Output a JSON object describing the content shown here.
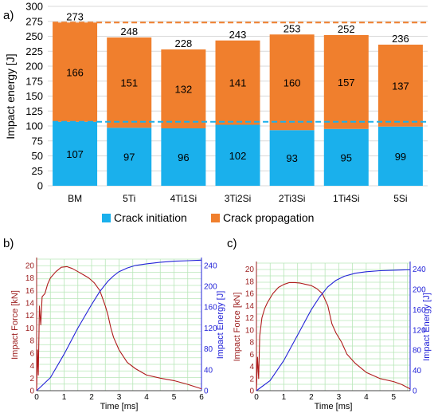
{
  "panels": {
    "a": "a)",
    "b": "b)",
    "c": "c)"
  },
  "chart_data": [
    {
      "type": "bar",
      "stacked": true,
      "categories": [
        "BM",
        "5Ti",
        "4Ti1Si",
        "3Ti2Si",
        "2Ti3Si",
        "1Ti4Si",
        "5Si"
      ],
      "series": [
        {
          "name": "Crack initiation",
          "values": [
            107,
            97,
            96,
            102,
            93,
            95,
            99
          ],
          "color": "#1ab0ec"
        },
        {
          "name": "Crack propagation",
          "values": [
            166,
            151,
            132,
            141,
            160,
            157,
            137
          ],
          "color": "#f07f2d"
        }
      ],
      "totals": [
        273,
        248,
        228,
        243,
        253,
        252,
        236
      ],
      "ylabel": "Impact energy [J]",
      "ylim": [
        0,
        300
      ],
      "yticks": [
        0,
        25,
        50,
        75,
        100,
        125,
        150,
        175,
        200,
        225,
        250,
        275,
        300
      ],
      "reference_lines": [
        {
          "value": 273,
          "color": "#f07f2d",
          "style": "dashed"
        },
        {
          "value": 107,
          "color": "#1ab0ec",
          "style": "dashed"
        }
      ],
      "legend_position": "bottom"
    },
    {
      "type": "line",
      "panel": "b",
      "xlabel": "Time [ms]",
      "ylabel_left": "Impact Force [kN]",
      "ylabel_right": "Impact Energy [J]",
      "xlim": [
        0,
        6
      ],
      "ylim_left": [
        0,
        21
      ],
      "ylim_right": [
        0,
        252
      ],
      "xticks": [
        0,
        1,
        2,
        3,
        4,
        5,
        6
      ],
      "yticks_left": [
        0,
        2,
        4,
        6,
        8,
        10,
        12,
        14,
        16,
        18,
        20
      ],
      "yticks_right": [
        0,
        40,
        80,
        120,
        160,
        200,
        240
      ],
      "grid": true,
      "series": [
        {
          "name": "Impact Force",
          "axis": "left",
          "color": "#b01c1c",
          "x": [
            0,
            0.03,
            0.06,
            0.1,
            0.15,
            0.2,
            0.3,
            0.4,
            0.5,
            0.7,
            0.9,
            1.1,
            1.3,
            1.5,
            1.7,
            1.9,
            2.1,
            2.3,
            2.5,
            2.6,
            2.7,
            2.8,
            3.0,
            3.3,
            3.6,
            4.0,
            4.5,
            5.0,
            5.5,
            6.0
          ],
          "y": [
            0,
            6.5,
            2.5,
            13.5,
            10.5,
            15.0,
            15.5,
            17.0,
            18.0,
            19.0,
            19.7,
            19.8,
            19.5,
            19.0,
            18.5,
            18.0,
            17.2,
            16.0,
            13.5,
            12.0,
            10.0,
            8.5,
            6.5,
            4.5,
            3.5,
            2.5,
            2.0,
            1.6,
            1.0,
            0.3
          ]
        },
        {
          "name": "Impact Energy",
          "axis": "right",
          "color": "#2323d8",
          "x": [
            0,
            0.5,
            1.0,
            1.5,
            2.0,
            2.3,
            2.6,
            2.8,
            3.0,
            3.3,
            3.6,
            4.0,
            4.5,
            5.0,
            5.5,
            6.0
          ],
          "y": [
            0,
            25,
            70,
            120,
            165,
            190,
            210,
            220,
            228,
            235,
            240,
            243,
            246,
            248,
            249,
            250
          ]
        }
      ]
    },
    {
      "type": "line",
      "panel": "c",
      "xlabel": "Time [ms]",
      "ylabel_left": "Impact Force [kN]",
      "ylabel_right": "Impact Energy [J]",
      "xlim": [
        0,
        5.6
      ],
      "ylim_left": [
        0,
        21
      ],
      "ylim_right": [
        0,
        252
      ],
      "xticks": [
        0,
        1,
        2,
        3,
        4,
        5
      ],
      "yticks_left": [
        0,
        2,
        4,
        6,
        8,
        10,
        12,
        14,
        16,
        18,
        20
      ],
      "yticks_right": [
        0,
        40,
        80,
        120,
        160,
        200,
        240
      ],
      "grid": true,
      "series": [
        {
          "name": "Impact Force",
          "axis": "left",
          "color": "#b01c1c",
          "x": [
            0,
            0.04,
            0.08,
            0.12,
            0.2,
            0.3,
            0.4,
            0.6,
            0.8,
            1.0,
            1.2,
            1.4,
            1.6,
            1.8,
            2.0,
            2.2,
            2.4,
            2.6,
            2.75,
            2.9,
            3.1,
            3.3,
            3.6,
            4.0,
            4.5,
            5.0,
            5.3,
            5.6
          ],
          "y": [
            0,
            5.5,
            2.0,
            9.0,
            12.0,
            13.5,
            14.5,
            16.0,
            17.0,
            17.5,
            17.8,
            17.8,
            17.7,
            17.5,
            17.3,
            16.8,
            16.0,
            14.0,
            11.0,
            9.5,
            8.0,
            6.0,
            4.5,
            3.0,
            2.0,
            1.5,
            1.0,
            0.3
          ]
        },
        {
          "name": "Impact Energy",
          "axis": "right",
          "color": "#2323d8",
          "x": [
            0,
            0.5,
            1.0,
            1.5,
            2.0,
            2.3,
            2.6,
            2.9,
            3.2,
            3.6,
            4.0,
            4.5,
            5.0,
            5.6
          ],
          "y": [
            0,
            20,
            60,
            110,
            160,
            185,
            205,
            218,
            226,
            232,
            235,
            237,
            238,
            239
          ]
        }
      ]
    }
  ]
}
